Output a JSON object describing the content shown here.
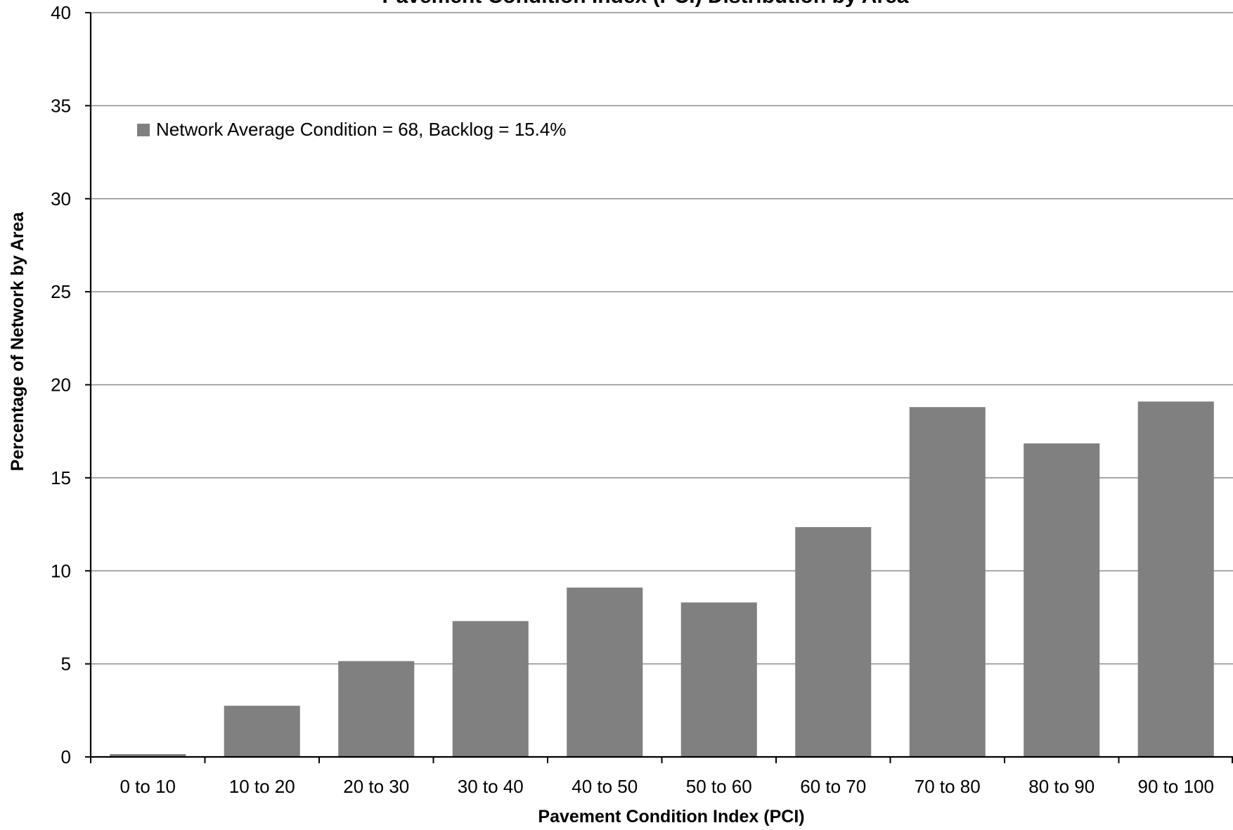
{
  "chart_data": {
    "type": "bar",
    "title": "Pavement Condition Index (PCI) Distribution by Area",
    "xlabel": "Pavement Condition Index (PCI)",
    "ylabel": "Percentage of Network by Area",
    "categories": [
      "0 to 10",
      "10 to 20",
      "20 to 30",
      "30 to 40",
      "40 to 50",
      "50 to 60",
      "60 to 70",
      "70 to 80",
      "80 to 90",
      "90 to 100"
    ],
    "series": [
      {
        "name": "Network Average Condition = 68, Backlog = 15.4%",
        "values": [
          0.15,
          2.75,
          5.15,
          7.3,
          9.1,
          8.3,
          12.35,
          18.8,
          16.85,
          19.1
        ],
        "color": "#808080"
      }
    ],
    "ylim": [
      0,
      40
    ],
    "yticks": [
      0,
      5,
      10,
      15,
      20,
      25,
      30,
      35,
      40
    ],
    "grid": true,
    "gridlines": "horizontal",
    "legend_position": "top-left",
    "colors": {
      "bar": "#808080",
      "grid": "#8c8c8c",
      "axis": "#000000",
      "text": "#000000"
    }
  }
}
